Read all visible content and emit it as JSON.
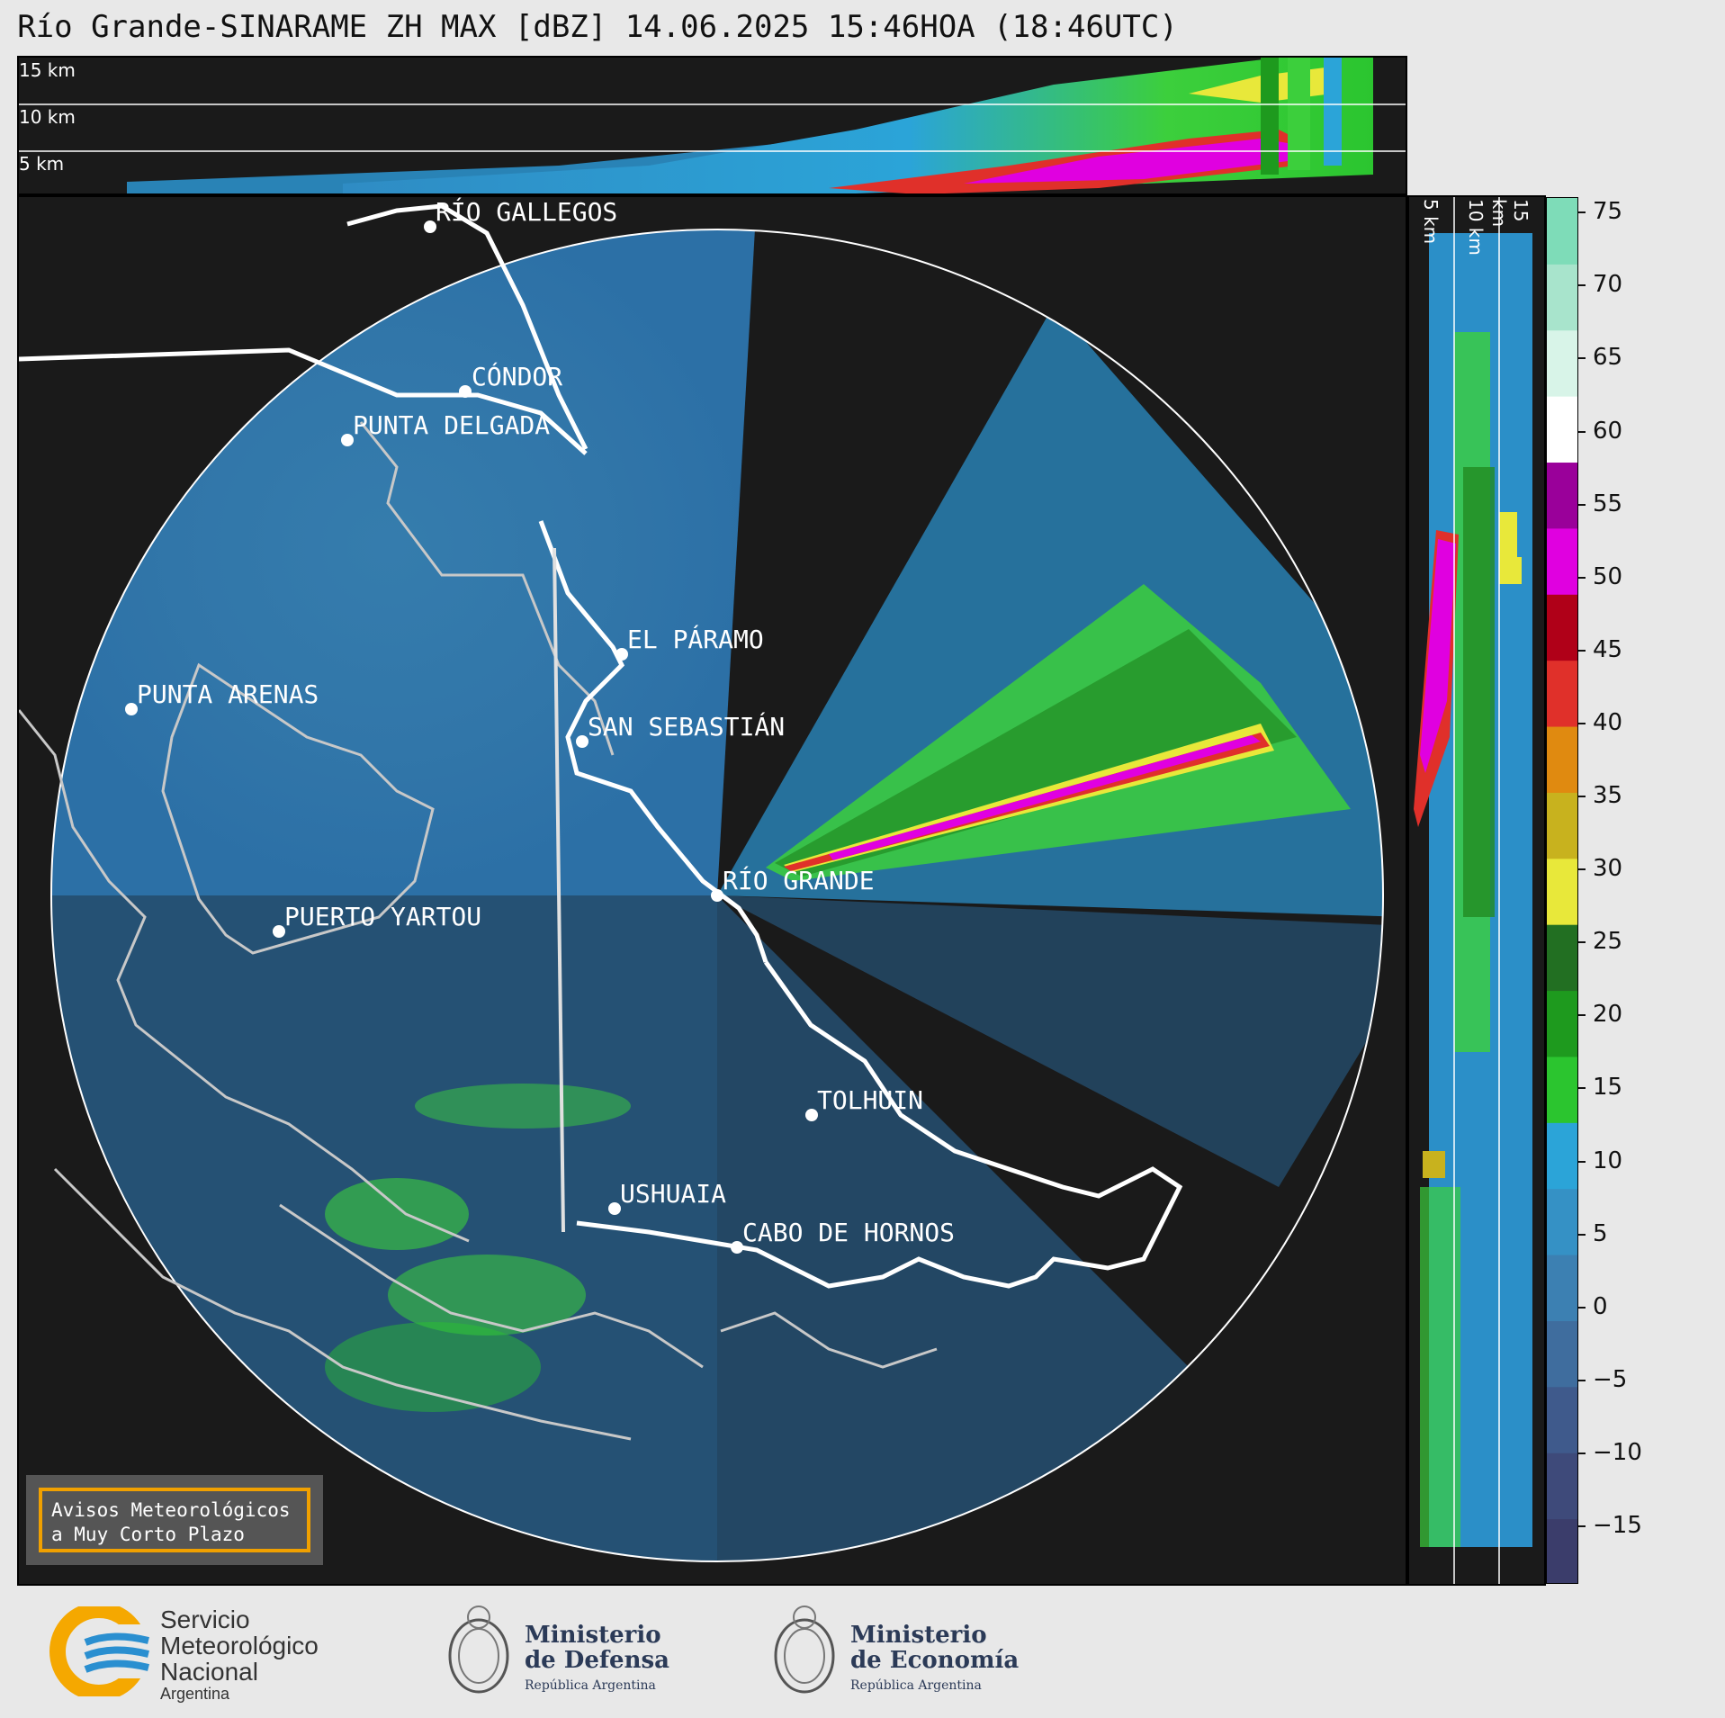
{
  "title": "Río Grande-SINARAME ZH MAX [dBZ] 14.06.2025 15:46HOA (18:46UTC)",
  "top_panel": {
    "altitude_labels": [
      "15 km",
      "10 km",
      "5 km"
    ]
  },
  "side_panel": {
    "altitude_labels": [
      "5 km",
      "10 km",
      "15 km"
    ]
  },
  "cities": [
    {
      "name": "RÍO GALLEGOS"
    },
    {
      "name": "CÓNDOR"
    },
    {
      "name": "PUNTA DELGADA"
    },
    {
      "name": "EL PÁRAMO"
    },
    {
      "name": "PUNTA ARENAS"
    },
    {
      "name": "SAN SEBASTIÁN"
    },
    {
      "name": "RÍO GRANDE"
    },
    {
      "name": "PUERTO YARTOU"
    },
    {
      "name": "TOLHUIN"
    },
    {
      "name": "USHUAIA"
    },
    {
      "name": "CABO DE HORNOS"
    }
  ],
  "colorbar": {
    "unit": "dBZ",
    "tick_labels": [
      "75",
      "70",
      "65",
      "60",
      "55",
      "50",
      "45",
      "40",
      "35",
      "30",
      "25",
      "20",
      "15",
      "10",
      "5",
      "0",
      "−5",
      "−10",
      "−15"
    ],
    "range": [
      -19,
      76
    ],
    "colors": [
      "#3b3d6b",
      "#3e4a7a",
      "#3f5a8c",
      "#3f6d9e",
      "#3c80b2",
      "#3591c5",
      "#2ba4d8",
      "#2bc52f",
      "#1e9a1e",
      "#226f22",
      "#e8e83a",
      "#c8b21e",
      "#e08a10",
      "#e0302a",
      "#b00018",
      "#e000e0",
      "#9a009a",
      "#ffffff",
      "#d8f4e8",
      "#a8e4cc",
      "#7edcb8"
    ]
  },
  "avisos": {
    "line1": "Avisos Meteorológicos",
    "line2": "a Muy Corto Plazo"
  },
  "logos": {
    "smn": {
      "line1": "Servicio",
      "line2": "Meteorológico",
      "line3": "Nacional",
      "line4": "Argentina"
    },
    "defensa": {
      "line1": "Ministerio",
      "line2": "de Defensa",
      "line3": "República Argentina"
    },
    "economia": {
      "line1": "Ministerio",
      "line2": "de Economía",
      "line3": "República Argentina"
    }
  }
}
